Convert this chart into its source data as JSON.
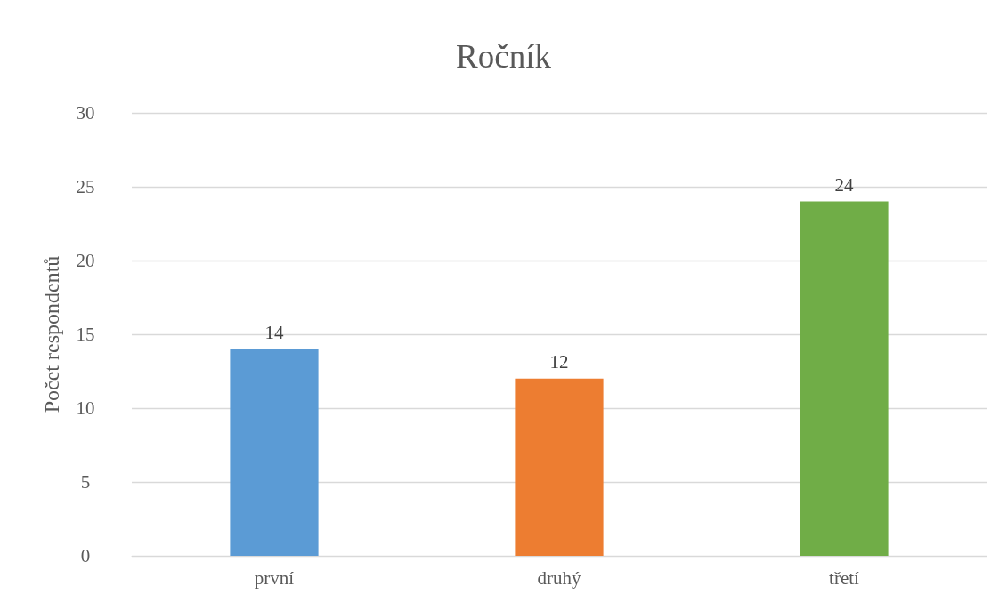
{
  "chart_data": {
    "type": "bar",
    "title": "Ročník",
    "ylabel": "Počet respondentů",
    "categories": [
      "první",
      "druhý",
      "třetí"
    ],
    "values": [
      14,
      12,
      24
    ],
    "colors": [
      "#5b9bd5",
      "#ed7d31",
      "#70ad47"
    ],
    "ylim": [
      0,
      30
    ],
    "yticks": [
      0,
      5,
      10,
      15,
      20,
      25,
      30
    ],
    "grid": "y",
    "data_labels": true
  }
}
